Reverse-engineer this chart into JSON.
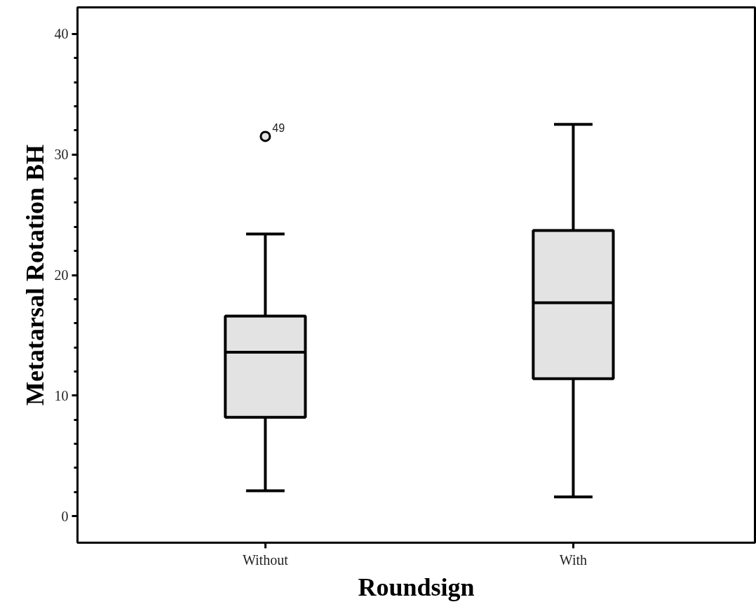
{
  "chart_data": {
    "type": "box",
    "xlabel": "Roundsign",
    "ylabel": "Metatarsal Rotation BH",
    "categories": [
      "Without",
      "With"
    ],
    "boxes": [
      {
        "low": 2.1,
        "q1": 8.2,
        "median": 13.6,
        "q3": 16.6,
        "high": 23.4,
        "outliers": [
          31.5
        ]
      },
      {
        "low": 1.6,
        "q1": 11.4,
        "median": 17.7,
        "q3": 23.7,
        "high": 32.5
      }
    ],
    "color": "#e3e3e3",
    "ylim": [
      -2.2,
      42.2
    ],
    "yticks": [
      0,
      {
        "value": 2,
        "label": null
      },
      {
        "value": 4,
        "label": null
      },
      {
        "value": 6,
        "label": null
      },
      {
        "value": 8,
        "label": null
      },
      10,
      {
        "value": 12,
        "label": null
      },
      {
        "value": 14,
        "label": null
      },
      {
        "value": 16,
        "label": null
      },
      {
        "value": 18,
        "label": null
      },
      20,
      {
        "value": 22,
        "label": null
      },
      {
        "value": 24,
        "label": null
      },
      {
        "value": 26,
        "label": null
      },
      {
        "value": 28,
        "label": null
      },
      30,
      {
        "value": 32,
        "label": null
      },
      {
        "value": 34,
        "label": null
      },
      {
        "value": 36,
        "label": null
      },
      {
        "value": 38,
        "label": null
      },
      40
    ],
    "annotations": [
      "49"
    ],
    "grid": false
  }
}
